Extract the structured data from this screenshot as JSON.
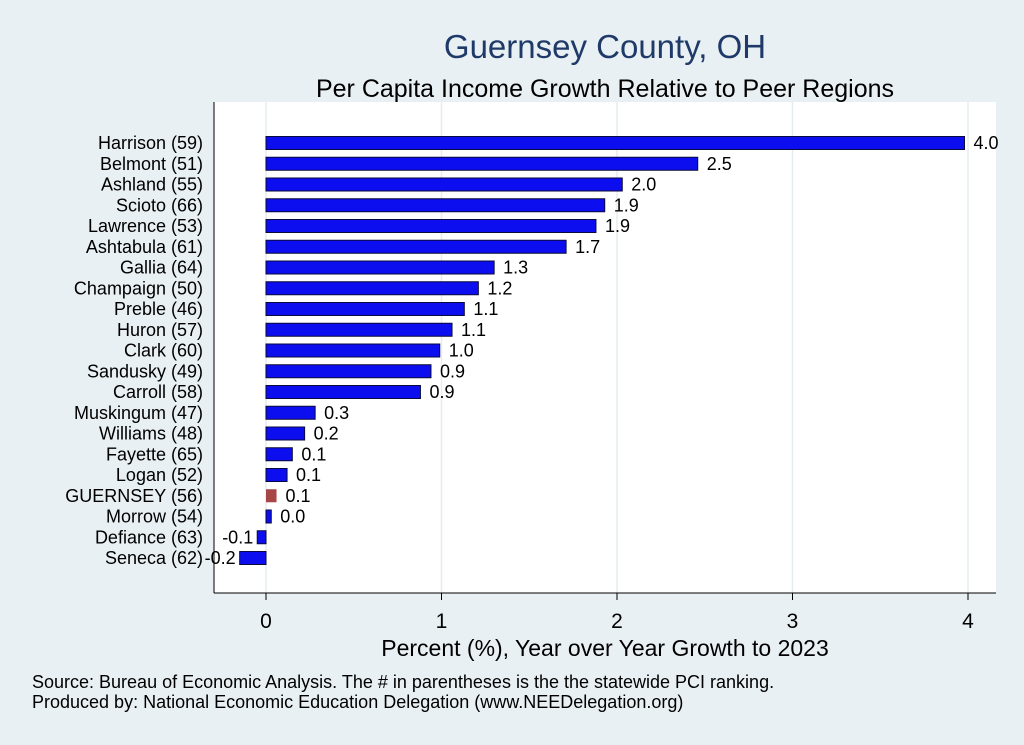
{
  "chart_data": {
    "type": "bar",
    "orientation": "horizontal",
    "title": "Guernsey County, OH",
    "subtitle": "Per Capita Income Growth Relative to Peer Regions",
    "xlabel": "Percent (%), Year over Year Growth to 2023",
    "ylabel": "",
    "xlim": [
      -0.3,
      4.15
    ],
    "xticks": [
      0,
      1,
      2,
      3,
      4
    ],
    "grid": "vertical",
    "categories": [
      "Harrison (59)",
      "Belmont (51)",
      "Ashland (55)",
      "Scioto (66)",
      "Lawrence (53)",
      "Ashtabula (61)",
      "Gallia (64)",
      "Champaign (50)",
      "Preble (46)",
      "Huron (57)",
      "Clark (60)",
      "Sandusky (49)",
      "Carroll (58)",
      "Muskingum (47)",
      "Williams (48)",
      "Fayette (65)",
      "Logan (52)",
      "GUERNSEY (56)",
      "Morrow (54)",
      "Defiance (63)",
      "Seneca (62)"
    ],
    "values": [
      3.98,
      2.46,
      2.03,
      1.93,
      1.88,
      1.71,
      1.3,
      1.21,
      1.13,
      1.06,
      0.99,
      0.94,
      0.88,
      0.28,
      0.22,
      0.15,
      0.12,
      0.06,
      0.03,
      -0.05,
      -0.15
    ],
    "value_labels": [
      "4.0",
      "2.5",
      "2.0",
      "1.9",
      "1.9",
      "1.7",
      "1.3",
      "1.2",
      "1.1",
      "1.1",
      "1.0",
      "0.9",
      "0.9",
      "0.3",
      "0.2",
      "0.1",
      "0.1",
      "0.1",
      "0.0",
      "-0.1",
      "-0.2"
    ],
    "highlight": "GUERNSEY (56)",
    "colors": {
      "bar": "#0c0ef0",
      "highlight": "#a64745",
      "title": "#1f3a68",
      "background": "#e9f0f4",
      "plot_background": "#ffffff",
      "grid": "#e6edf1"
    }
  },
  "notes": {
    "source": "Source: Bureau of Economic Analysis. The # in parentheses is the the statewide PCI ranking.",
    "producer": "Produced by: National Economic Education Delegation (www.NEEDelegation.org)"
  }
}
